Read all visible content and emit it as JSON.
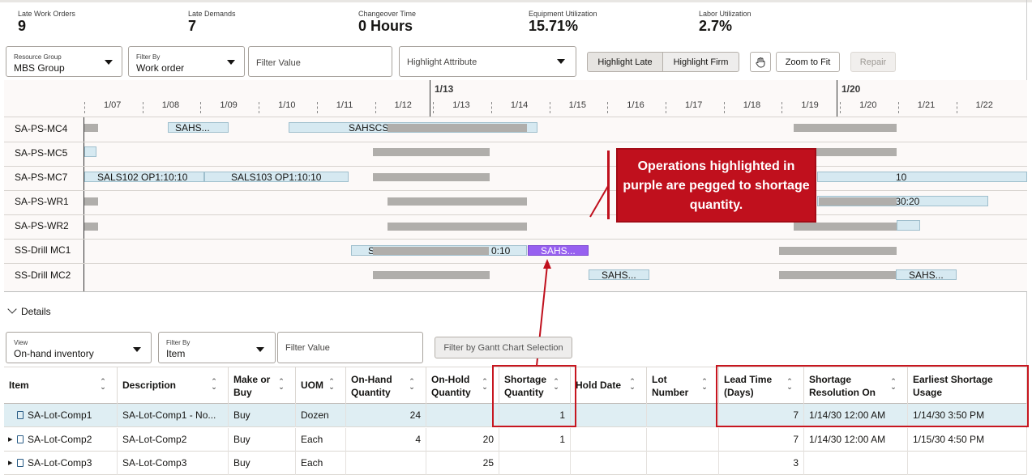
{
  "metrics": [
    {
      "label": "Late Work Orders",
      "value": "9"
    },
    {
      "label": "Late Demands",
      "value": "7"
    },
    {
      "label": "Changeover Time",
      "value": "0 Hours"
    },
    {
      "label": "Equipment Utilization",
      "value": "15.71%"
    },
    {
      "label": "Labor Utilization",
      "value": "2.7%"
    }
  ],
  "toolbar": {
    "resource_group_label": "Resource Group",
    "resource_group_value": "MBS Group",
    "filter_by_label": "Filter By",
    "filter_by_value": "Work order",
    "filter_value_placeholder": "Filter Value",
    "highlight_attribute_placeholder": "Highlight Attribute",
    "highlight_late": "Highlight Late",
    "highlight_firm": "Highlight Firm",
    "zoom_to_fit": "Zoom to Fit",
    "repair": "Repair"
  },
  "timeline": {
    "weeks": [
      "1/13",
      "1/20"
    ],
    "days": [
      "1/07",
      "1/08",
      "1/09",
      "1/10",
      "1/11",
      "1/12",
      "1/13",
      "1/14",
      "1/15",
      "1/16",
      "1/17",
      "1/18",
      "1/19",
      "1/20",
      "1/21",
      "1/22"
    ]
  },
  "gantt": {
    "resources": [
      "SA-PS-MC4",
      "SA-PS-MC5",
      "SA-PS-MC7",
      "SA-PS-WR1",
      "SA-PS-WR2",
      "SS-Drill MC1",
      "SS-Drill MC2"
    ],
    "bar_labels": {
      "mc4_a": "SAHS...",
      "mc4_b": "SAHSCSU",
      "mc7_a": "SALS102 OP1:10:10",
      "mc7_b": "SALS103 OP1:10:10",
      "mc7_c": "10",
      "wr1_c": "):30:20",
      "drill1_a": "S",
      "drill1_b": "0:10",
      "drill1_purple": "SAHS...",
      "drill2_a": "SAHS...",
      "drill2_b": "SAHS..."
    }
  },
  "callout": {
    "text": "Operations highlighted in purple are pegged to shortage quantity.",
    "color": "#c0101d"
  },
  "details": {
    "toggle_label": "Details",
    "view_label": "View",
    "view_value": "On-hand inventory",
    "filter_by_label": "Filter By",
    "filter_by_value": "Item",
    "filter_value_placeholder": "Filter Value",
    "filter_gantt_button": "Filter by Gantt Chart Selection"
  },
  "table": {
    "columns": [
      "Item",
      "Description",
      "Make or Buy",
      "UOM",
      "On-Hand Quantity",
      "On-Hold Quantity",
      "Shortage Quantity",
      "Hold Date",
      "Lot Number",
      "Lead Time (Days)",
      "Shortage Resolution On",
      "Earliest Shortage Usage"
    ],
    "rows": [
      {
        "item": "SA-Lot-Comp1",
        "description": "SA-Lot-Comp1 - No...",
        "make_buy": "Buy",
        "uom": "Dozen",
        "on_hand": "24",
        "on_hold": "",
        "shortage": "1",
        "hold_date": "",
        "lot": "",
        "lead": "7",
        "resolution": "1/14/30 12:00 AM",
        "earliest": "1/14/30 3:50 PM"
      },
      {
        "item": "SA-Lot-Comp2",
        "description": "SA-Lot-Comp2",
        "make_buy": "Buy",
        "uom": "Each",
        "on_hand": "4",
        "on_hold": "20",
        "shortage": "1",
        "hold_date": "",
        "lot": "",
        "lead": "7",
        "resolution": "1/14/30 12:00 AM",
        "earliest": "1/15/30 4:50 PM"
      },
      {
        "item": "SA-Lot-Comp3",
        "description": "SA-Lot-Comp3",
        "make_buy": "Buy",
        "uom": "Each",
        "on_hand": "",
        "on_hold": "25",
        "shortage": "",
        "hold_date": "",
        "lot": "",
        "lead": "3",
        "resolution": "",
        "earliest": ""
      }
    ]
  }
}
